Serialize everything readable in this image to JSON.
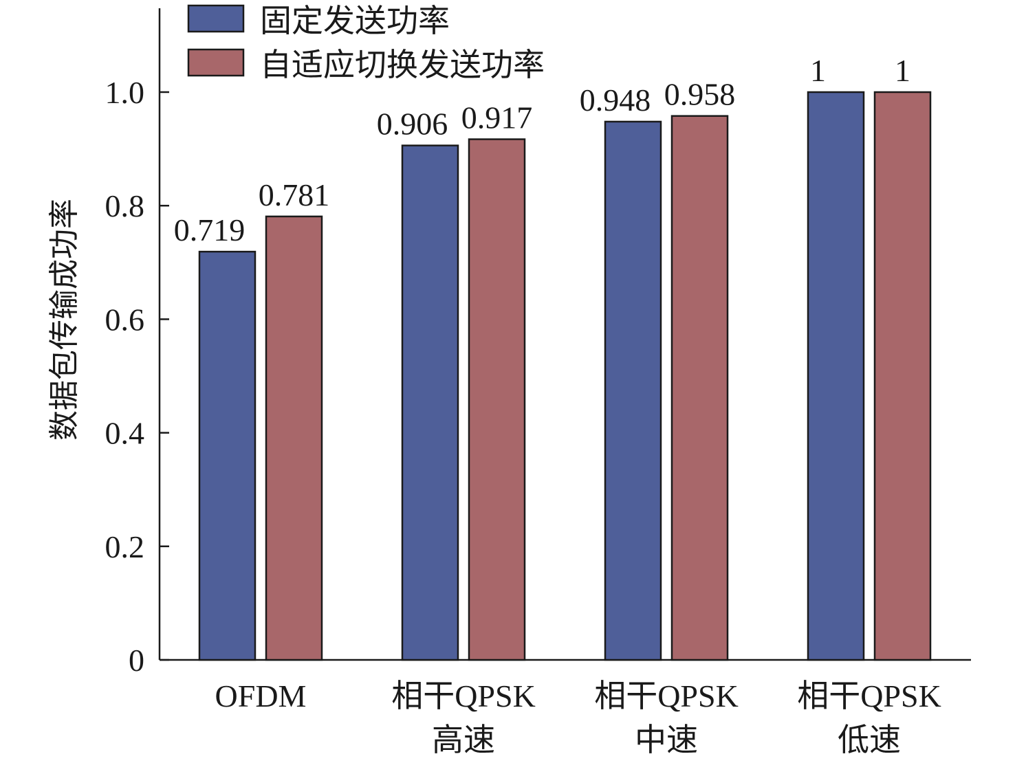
{
  "chart_data": {
    "type": "bar",
    "ylabel": "数据包传输成功率",
    "xlabel": "",
    "ylim": [
      0,
      1.14
    ],
    "y_ticks": [
      "0",
      "0.2",
      "0.4",
      "0.6",
      "0.8",
      "1.0"
    ],
    "y_tick_values": [
      0,
      0.2,
      0.4,
      0.6,
      0.8,
      1.0
    ],
    "categories": [
      [
        "OFDM"
      ],
      [
        "相干QPSK",
        "高速"
      ],
      [
        "相干QPSK",
        "中速"
      ],
      [
        "相干QPSK",
        "低速"
      ]
    ],
    "series": [
      {
        "name": "固定发送功率",
        "color": "#4f5f99",
        "values": [
          0.719,
          0.906,
          0.948,
          1
        ],
        "labels": [
          "0.719",
          "0.906",
          "0.948",
          "1"
        ]
      },
      {
        "name": "自适应切换发送功率",
        "color": "#a8676a",
        "values": [
          0.781,
          0.917,
          0.958,
          1
        ],
        "labels": [
          "0.781",
          "0.917",
          "0.958",
          "1"
        ]
      }
    ],
    "legend_position": "top-left",
    "grid": false
  }
}
